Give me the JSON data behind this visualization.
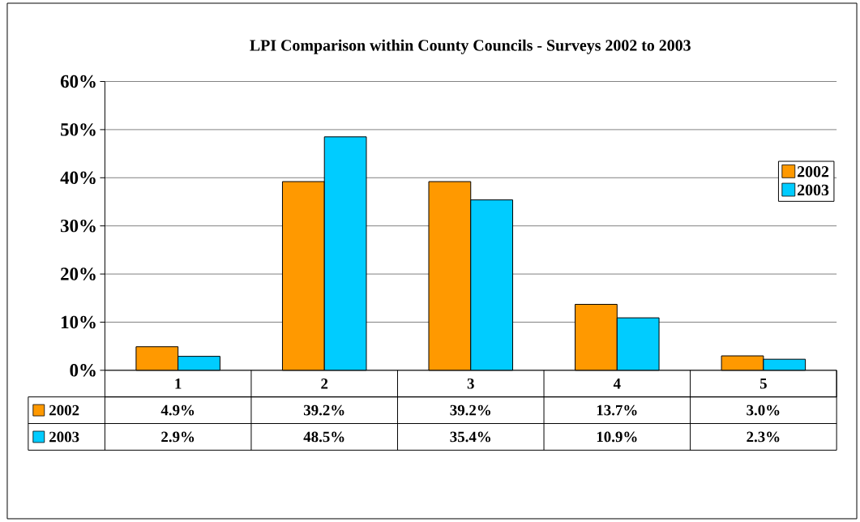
{
  "chart_data": {
    "type": "bar",
    "title": "LPI Comparison within County Councils - Surveys 2002 to 2003",
    "categories": [
      "1",
      "2",
      "3",
      "4",
      "5"
    ],
    "series": [
      {
        "name": "2002",
        "color": "#ff9900",
        "values": [
          4.9,
          39.2,
          39.2,
          13.7,
          3.0
        ],
        "value_labels": [
          "4.9%",
          "39.2%",
          "39.2%",
          "13.7%",
          "3.0%"
        ]
      },
      {
        "name": "2003",
        "color": "#00ccff",
        "values": [
          2.9,
          48.5,
          35.4,
          10.9,
          2.3
        ],
        "value_labels": [
          "2.9%",
          "48.5%",
          "35.4%",
          "10.9%",
          "2.3%"
        ]
      }
    ],
    "ylim": [
      0,
      60
    ],
    "yticks": [
      {
        "value": 0,
        "label": "0%"
      },
      {
        "value": 10,
        "label": "10%"
      },
      {
        "value": 20,
        "label": "20%"
      },
      {
        "value": 30,
        "label": "30%"
      },
      {
        "value": 40,
        "label": "40%"
      },
      {
        "value": 50,
        "label": "50%"
      },
      {
        "value": 60,
        "label": "60%"
      }
    ],
    "grid": "y",
    "legend": "right"
  }
}
